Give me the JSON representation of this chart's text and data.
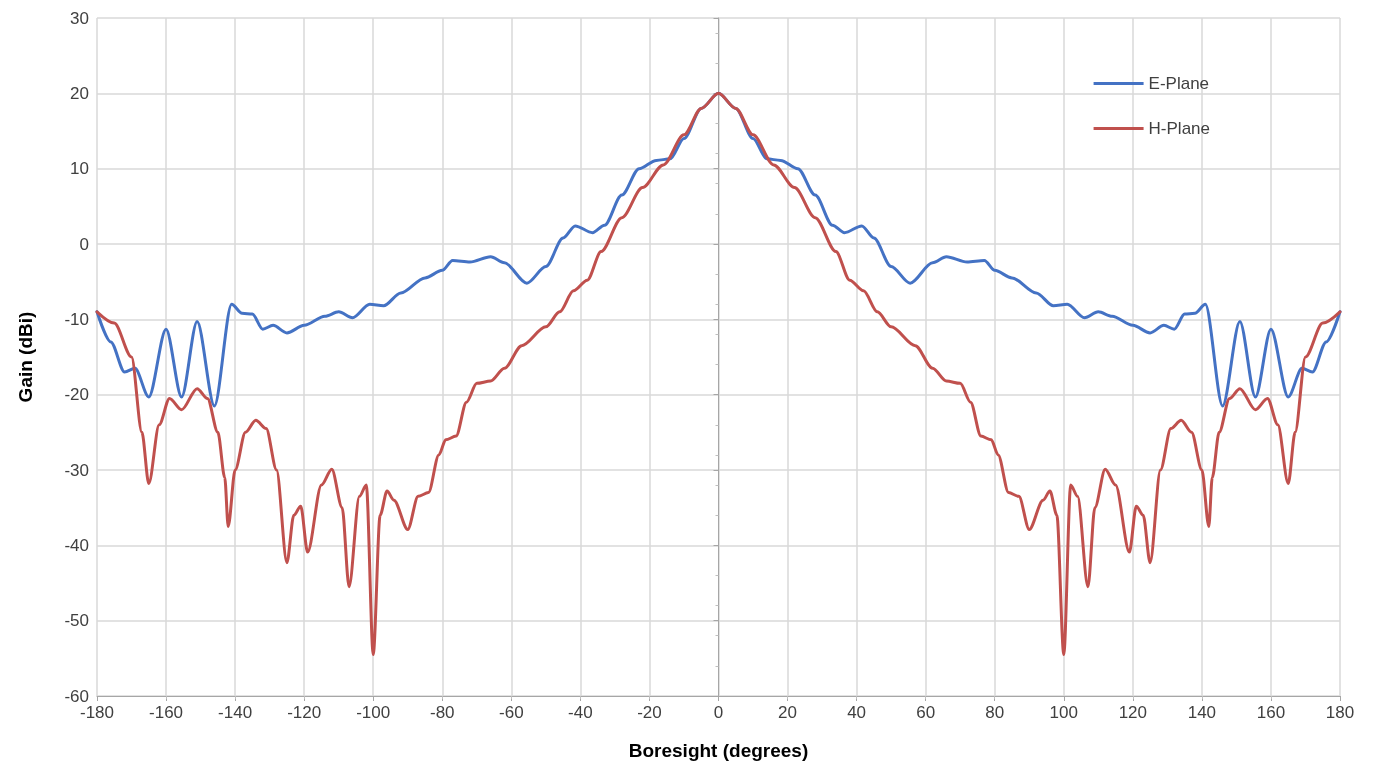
{
  "chart_data": {
    "type": "line",
    "xlabel": "Boresight (degrees)",
    "ylabel": "Gain (dBi)",
    "xlim": [
      -180,
      180
    ],
    "xticks": [
      -180,
      -160,
      -140,
      -120,
      -100,
      -80,
      -60,
      -40,
      -20,
      0,
      20,
      40,
      60,
      80,
      100,
      120,
      140,
      160,
      180
    ],
    "ylim": [
      -60,
      30
    ],
    "yticks": [
      -60,
      -50,
      -40,
      -30,
      -20,
      -10,
      0,
      10,
      20,
      30
    ],
    "grid": true,
    "legend": "top right",
    "marker": "none",
    "line_style": "solid",
    "series": [
      {
        "name": "E-Plane",
        "color": "#4472c4",
        "x": [
          -180,
          -176,
          -172,
          -169,
          -165,
          -160,
          -155.5,
          -151,
          -146,
          -141,
          -138,
          -135,
          -132,
          -129,
          -125,
          -120,
          -114,
          -110,
          -106,
          -101,
          -97,
          -92,
          -85,
          -80,
          -77,
          -72,
          -66,
          -62,
          -55.5,
          -50,
          -45,
          -41.5,
          -36.5,
          -33,
          -28,
          -23,
          -18,
          -14,
          -10,
          -5,
          0,
          5,
          10,
          14,
          18,
          23,
          28,
          33,
          36.5,
          41.5,
          45,
          50,
          55.5,
          62,
          66,
          72,
          77,
          80,
          85,
          92,
          97,
          101,
          106,
          110,
          114,
          120,
          125,
          129,
          132,
          135,
          138,
          141,
          146,
          151,
          155.5,
          160,
          165,
          169,
          172,
          176,
          180
        ],
        "values": [
          -9,
          -13,
          -17,
          -16.5,
          -20.3,
          -11.3,
          -20.3,
          -10.3,
          -21.5,
          -8,
          -9.2,
          -9.3,
          -11.3,
          -10.8,
          -11.8,
          -10.8,
          -9.6,
          -9,
          -9.8,
          -8,
          -8.2,
          -6.5,
          -4.5,
          -3.5,
          -2.2,
          -2.4,
          -1.7,
          -2.5,
          -5.2,
          -3,
          0.8,
          2.4,
          1.5,
          2.5,
          6.5,
          10,
          11.1,
          11.3,
          14,
          18,
          20,
          18,
          14,
          11.3,
          11.1,
          10,
          6.5,
          2.5,
          1.5,
          2.4,
          0.8,
          -3,
          -5.2,
          -2.5,
          -1.7,
          -2.4,
          -2.2,
          -3.5,
          -4.5,
          -6.5,
          -8.2,
          -8,
          -9.8,
          -9,
          -9.6,
          -10.8,
          -11.8,
          -10.8,
          -11.3,
          -9.3,
          -9.2,
          -8,
          -21.5,
          -10.3,
          -20.3,
          -11.3,
          -20.3,
          -16.5,
          -17,
          -13,
          -9
        ]
      },
      {
        "name": "H-Plane",
        "color": "#c0504d",
        "x": [
          -180,
          -175,
          -170,
          -167,
          -165,
          -162,
          -159,
          -155.5,
          -151,
          -148,
          -145,
          -143,
          -142,
          -140,
          -137,
          -134,
          -131,
          -128,
          -125,
          -123,
          -121,
          -119,
          -115,
          -112,
          -109,
          -107,
          -104,
          -102,
          -100,
          -98,
          -96,
          -94,
          -90,
          -87,
          -84,
          -81,
          -79,
          -76,
          -73,
          -70,
          -66,
          -62,
          -57,
          -50,
          -46,
          -42,
          -38,
          -34,
          -28,
          -22,
          -16,
          -10,
          -5,
          0,
          5,
          10,
          16,
          22,
          28,
          34,
          38,
          42,
          46,
          50,
          57,
          62,
          66,
          70,
          73,
          76,
          79,
          81,
          84,
          87,
          90,
          94,
          96,
          98,
          100,
          102,
          104,
          107,
          109,
          112,
          115,
          119,
          121,
          123,
          125,
          128,
          131,
          134,
          137,
          140,
          142,
          143,
          145,
          148,
          151,
          155.5,
          159,
          162,
          165,
          167,
          170,
          175,
          180
        ],
        "values": [
          -9,
          -10.5,
          -15,
          -25,
          -31.8,
          -24,
          -20.5,
          -22,
          -19.2,
          -20.5,
          -25,
          -31,
          -37.5,
          -30,
          -25,
          -23.4,
          -24.5,
          -30,
          -42.3,
          -36,
          -34.8,
          -40.9,
          -32,
          -29.9,
          -35,
          -45.5,
          -33.5,
          -32,
          -54.5,
          -36,
          -32.8,
          -34,
          -37.9,
          -33.5,
          -33,
          -28,
          -26,
          -25.5,
          -21,
          -18.5,
          -18.2,
          -16.5,
          -13.5,
          -11,
          -9,
          -6.2,
          -4.8,
          -1,
          3.5,
          7.5,
          10.5,
          14.5,
          18,
          20,
          18,
          14.5,
          10.5,
          7.5,
          3.5,
          -1,
          -4.8,
          -6.2,
          -9,
          -11,
          -13.5,
          -16.5,
          -18.2,
          -18.5,
          -21,
          -25.5,
          -26,
          -28,
          -33,
          -33.5,
          -37.9,
          -34,
          -32.8,
          -36,
          -54.5,
          -32,
          -33.5,
          -45.5,
          -35,
          -29.9,
          -32,
          -40.9,
          -34.8,
          -36,
          -42.3,
          -30,
          -24.5,
          -23.4,
          -25,
          -30,
          -37.5,
          -31,
          -25,
          -20.5,
          -19.2,
          -22,
          -20.5,
          -24,
          -31.8,
          -25,
          -15,
          -10.5,
          -9
        ]
      }
    ]
  }
}
